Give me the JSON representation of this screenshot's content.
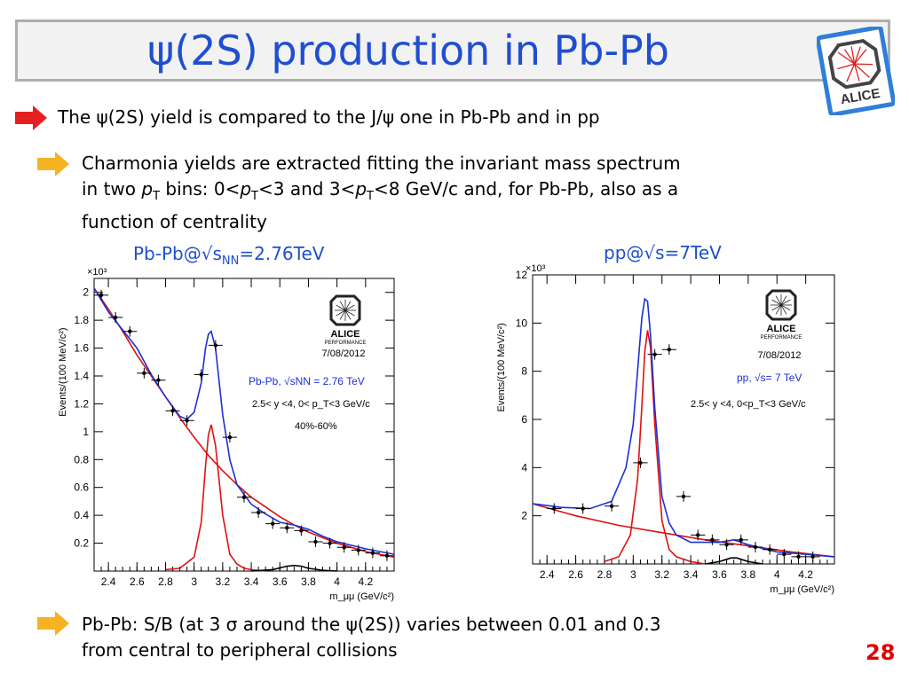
{
  "title": "ψ(2S) production in Pb-Pb",
  "logo": {
    "text": "ALICE",
    "icon": "alice-logo-icon"
  },
  "bullets": {
    "main": "The ψ(2S) yield is compared to the J/ψ one in Pb-Pb and in pp",
    "sub1": {
      "line1": "Charmonia yields are extracted fitting the invariant mass spectrum",
      "line2_pre": "in two ",
      "p": "p",
      "T": "T",
      "line2_mid1": " bins: 0<",
      "line2_mid2": "<3 and 3<",
      "line2_post": "<8 GeV/c and, for Pb-Pb, also as a",
      "line3": "function of centrality"
    },
    "sub2": {
      "line1": "Pb-Pb: S/B (at 3 σ around the ψ(2S)) varies between 0.01 and 0.3",
      "line2": "from central to peripheral collisions"
    }
  },
  "plot_titles": {
    "left_pre": "Pb-Pb@√s",
    "left_sub": "NN",
    "left_post": "=2.76TeV",
    "right": "pp@√s=7TeV"
  },
  "page_number": "28",
  "colors": {
    "title": "#1f4fd0",
    "arrow_red": "#e62020",
    "arrow_yellow": "#f5b324",
    "fit_blue": "#1c2fd6",
    "fit_red": "#e01010"
  },
  "chart_data": [
    {
      "type": "scatter",
      "panel": "Pb-Pb",
      "xlabel": "m_μμ (GeV/c²)",
      "ylabel": "Events/(100 MeV/c²)",
      "y_multiplier": "×10³",
      "xlim": [
        2.3,
        4.4
      ],
      "ylim": [
        0,
        2.1
      ],
      "xticks": [
        "2.4",
        "2.6",
        "2.8",
        "3",
        "3.2",
        "3.4",
        "3.6",
        "3.8",
        "4",
        "4.2"
      ],
      "yticks": [
        "0.2",
        "0.4",
        "0.6",
        "0.8",
        "1",
        "1.2",
        "1.4",
        "1.6",
        "1.8",
        "2"
      ],
      "logo_label": "ALICE",
      "performance": "PERFORMANCE",
      "date": "7/08/2012",
      "legend1_pre": "Pb-Pb, √s",
      "legend1_sub": "NN",
      "legend1_post": "= 2.76 TeV",
      "legend2": "2.5< y <4, 0< p_T<3 GeV/c",
      "legend3": "40%-60%",
      "points": {
        "x": [
          2.35,
          2.45,
          2.55,
          2.65,
          2.75,
          2.85,
          2.95,
          3.05,
          3.15,
          3.25,
          3.35,
          3.45,
          3.55,
          3.65,
          3.75,
          3.85,
          3.95,
          4.05,
          4.15,
          4.25,
          4.35
        ],
        "y": [
          1.98,
          1.82,
          1.72,
          1.42,
          1.37,
          1.15,
          1.08,
          1.41,
          1.62,
          0.96,
          0.53,
          0.42,
          0.34,
          0.31,
          0.29,
          0.21,
          0.2,
          0.17,
          0.15,
          0.13,
          0.11
        ]
      },
      "total_fit": {
        "x": [
          2.3,
          2.4,
          2.5,
          2.6,
          2.7,
          2.8,
          2.9,
          2.95,
          3.0,
          3.05,
          3.08,
          3.1,
          3.12,
          3.15,
          3.2,
          3.25,
          3.3,
          3.4,
          3.5,
          3.6,
          3.7,
          3.8,
          3.9,
          4.0,
          4.2,
          4.4
        ],
        "y": [
          2.03,
          1.86,
          1.73,
          1.6,
          1.41,
          1.25,
          1.11,
          1.09,
          1.14,
          1.35,
          1.6,
          1.7,
          1.72,
          1.6,
          1.12,
          0.8,
          0.62,
          0.48,
          0.41,
          0.35,
          0.33,
          0.3,
          0.25,
          0.21,
          0.16,
          0.12
        ]
      },
      "background": {
        "x": [
          2.3,
          2.4,
          2.5,
          2.6,
          2.7,
          2.8,
          2.9,
          3.0,
          3.1,
          3.2,
          3.3,
          3.4,
          3.5,
          3.6,
          3.7,
          3.8,
          4.0,
          4.2,
          4.4
        ],
        "y": [
          2.03,
          1.88,
          1.72,
          1.55,
          1.4,
          1.25,
          1.1,
          0.96,
          0.83,
          0.72,
          0.62,
          0.53,
          0.46,
          0.39,
          0.33,
          0.28,
          0.2,
          0.14,
          0.1
        ]
      },
      "jpsi_signal": {
        "x": [
          2.8,
          2.9,
          3.0,
          3.05,
          3.08,
          3.1,
          3.12,
          3.15,
          3.2,
          3.25,
          3.3,
          3.35,
          3.4,
          3.5
        ],
        "y": [
          0.01,
          0.02,
          0.1,
          0.35,
          0.75,
          0.98,
          1.05,
          0.9,
          0.4,
          0.12,
          0.05,
          0.02,
          0.01,
          0.0
        ]
      },
      "psi2s_signal": {
        "x": [
          3.4,
          3.55,
          3.65,
          3.7,
          3.75,
          3.8,
          3.9,
          4.0
        ],
        "y": [
          0.0,
          0.01,
          0.035,
          0.04,
          0.035,
          0.02,
          0.005,
          0.0
        ]
      }
    },
    {
      "type": "scatter",
      "panel": "pp",
      "xlabel": "m_μμ (GeV/c²)",
      "ylabel": "Events/(100 MeV/c²)",
      "y_multiplier": "×10³",
      "xlim": [
        2.3,
        4.4
      ],
      "ylim": [
        0,
        12
      ],
      "xticks": [
        "2.4",
        "2.6",
        "2.8",
        "3",
        "3.2",
        "3.4",
        "3.6",
        "3.8",
        "4",
        "4.2"
      ],
      "yticks": [
        "2",
        "4",
        "6",
        "8",
        "10",
        "12"
      ],
      "logo_label": "ALICE",
      "performance": "PERFORMANCE",
      "date": "7/08/2012",
      "legend1": "pp, √s= 7 TeV",
      "legend2": "2.5< y <4, 0<p_T<3 GeV/c",
      "points": {
        "x": [
          2.45,
          2.65,
          2.85,
          3.05,
          3.15,
          3.25,
          3.35,
          3.45,
          3.55,
          3.65,
          3.75,
          3.85,
          3.95,
          4.05,
          4.15,
          4.25
        ],
        "y": [
          2.3,
          2.3,
          2.4,
          4.2,
          8.7,
          8.9,
          2.8,
          1.2,
          1.0,
          0.8,
          1.0,
          0.7,
          0.6,
          0.4,
          0.3,
          0.3
        ]
      },
      "total_fit": {
        "x": [
          2.3,
          2.5,
          2.7,
          2.85,
          2.95,
          3.0,
          3.03,
          3.06,
          3.08,
          3.1,
          3.12,
          3.15,
          3.2,
          3.25,
          3.3,
          3.4,
          3.6,
          3.7,
          3.8,
          4.0,
          4.2,
          4.4
        ],
        "y": [
          2.5,
          2.35,
          2.3,
          2.6,
          4.0,
          5.8,
          8.0,
          10.2,
          11.0,
          10.9,
          9.5,
          6.5,
          2.8,
          1.7,
          1.2,
          0.9,
          0.9,
          1.0,
          0.8,
          0.5,
          0.4,
          0.3
        ]
      },
      "background": {
        "x": [
          2.3,
          2.6,
          2.9,
          3.2,
          3.5,
          3.8,
          4.1,
          4.4
        ],
        "y": [
          2.5,
          2.0,
          1.6,
          1.3,
          1.0,
          0.75,
          0.5,
          0.3
        ]
      },
      "jpsi_signal": {
        "x": [
          2.8,
          2.9,
          2.98,
          3.03,
          3.06,
          3.08,
          3.1,
          3.12,
          3.15,
          3.2,
          3.25,
          3.3,
          3.4,
          3.5
        ],
        "y": [
          0.1,
          0.3,
          1.2,
          3.5,
          6.5,
          8.8,
          9.7,
          9.0,
          5.8,
          1.8,
          0.6,
          0.3,
          0.1,
          0.0
        ]
      },
      "psi2s_signal": {
        "x": [
          3.5,
          3.6,
          3.68,
          3.72,
          3.8,
          3.9
        ],
        "y": [
          0.0,
          0.1,
          0.25,
          0.25,
          0.1,
          0.0
        ]
      }
    }
  ]
}
